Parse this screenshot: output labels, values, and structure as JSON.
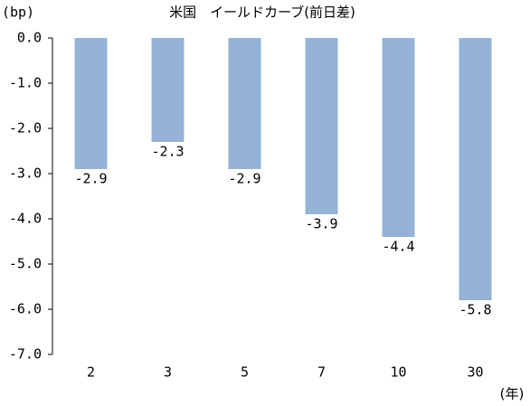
{
  "chart_data": {
    "type": "bar",
    "title": "米国　イールドカーブ(前日差)",
    "y_label": "(bp)",
    "x_label": "(年)",
    "categories": [
      "2",
      "3",
      "5",
      "7",
      "10",
      "30"
    ],
    "values": [
      -2.9,
      -2.3,
      -2.9,
      -3.9,
      -4.4,
      -5.8
    ],
    "color": "#95b3d7",
    "ylim": [
      -7,
      0
    ],
    "yticks": [
      {
        "value": 0,
        "label": "0.0"
      },
      {
        "value": -1,
        "label": "-1.0"
      },
      {
        "value": -2,
        "label": "-2.0"
      },
      {
        "value": -3,
        "label": "-3.0"
      },
      {
        "value": -4,
        "label": "-4.0"
      },
      {
        "value": -5,
        "label": "-5.0"
      },
      {
        "value": -6,
        "label": "-6.0"
      },
      {
        "value": -7,
        "label": "-7.0"
      }
    ],
    "grid": false
  }
}
